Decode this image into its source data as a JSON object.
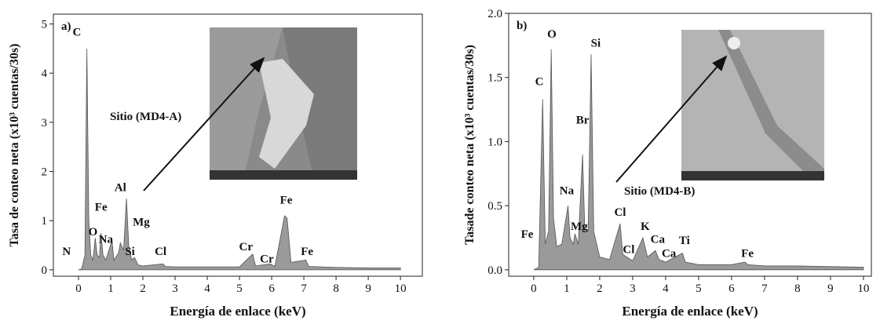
{
  "chart_data": [
    {
      "type": "area",
      "panel_label": "a)",
      "color": "#9a9a9a",
      "x_label": "Energía de enlace (keV)",
      "y_label": "Tasa de conteo neta (x10³ cuentas/30s)",
      "annotation": "Sitio (MD4-A)",
      "xlim": [
        -0.78,
        10.68
      ],
      "ylim": [
        -0.13,
        5.2
      ],
      "xticks": [
        0,
        1,
        2,
        3,
        4,
        5,
        6,
        7,
        8,
        9,
        10
      ],
      "yticks": [
        0,
        1,
        2,
        3,
        4,
        5
      ],
      "x": [
        0,
        0.1,
        0.2,
        0.26,
        0.32,
        0.38,
        0.45,
        0.52,
        0.58,
        0.65,
        0.7,
        0.76,
        0.85,
        1.04,
        1.1,
        1.25,
        1.3,
        1.4,
        1.49,
        1.56,
        1.65,
        1.74,
        1.85,
        2.0,
        2.62,
        2.7,
        3,
        4,
        5,
        5.41,
        5.5,
        5.95,
        6.1,
        6.4,
        6.48,
        6.6,
        7.06,
        7.15,
        8,
        9,
        10
      ],
      "y": [
        0,
        0.02,
        0.3,
        4.5,
        1.0,
        0.3,
        0.2,
        0.65,
        0.3,
        0.25,
        0.75,
        0.3,
        0.2,
        0.6,
        0.2,
        0.35,
        0.55,
        0.4,
        1.45,
        0.5,
        0.2,
        0.25,
        0.1,
        0.08,
        0.12,
        0.07,
        0.06,
        0.06,
        0.06,
        0.32,
        0.08,
        0.12,
        0.07,
        1.1,
        1.05,
        0.15,
        0.2,
        0.07,
        0.05,
        0.04,
        0.04
      ],
      "peak_labels": [
        {
          "label": "N",
          "x": -0.37,
          "y": 0.3
        },
        {
          "label": "C",
          "x": -0.05,
          "y": 4.76
        },
        {
          "label": "O",
          "x": 0.45,
          "y": 0.7
        },
        {
          "label": "Fe",
          "x": 0.7,
          "y": 1.2
        },
        {
          "label": "Na",
          "x": 0.85,
          "y": 0.55
        },
        {
          "label": "Al",
          "x": 1.3,
          "y": 1.6
        },
        {
          "label": "Mg",
          "x": 1.95,
          "y": 0.9
        },
        {
          "label": "Si",
          "x": 1.6,
          "y": 0.3
        },
        {
          "label": "Cl",
          "x": 2.55,
          "y": 0.3
        },
        {
          "label": "Cr",
          "x": 5.2,
          "y": 0.4
        },
        {
          "label": "Cr",
          "x": 5.85,
          "y": 0.15
        },
        {
          "label": "Fe",
          "x": 6.45,
          "y": 1.35
        },
        {
          "label": "Fe",
          "x": 7.1,
          "y": 0.3
        }
      ]
    },
    {
      "type": "area",
      "panel_label": "b)",
      "color": "#9a9a9a",
      "x_label": "Energía de enlace (keV)",
      "y_label": "Tasade conteo neta (x10³ cuentas/30s)",
      "annotation": "Sitio (MD4-B)",
      "xlim": [
        -0.76,
        10.24
      ],
      "ylim": [
        -0.05,
        2.0
      ],
      "xticks": [
        0,
        1,
        2,
        3,
        4,
        5,
        6,
        7,
        8,
        9,
        10
      ],
      "yticks": [
        {
          "value": 0,
          "label": "0.0"
        },
        0.5,
        {
          "value": 1,
          "label": "1.0"
        },
        1.5,
        {
          "value": 2,
          "label": "2.0"
        }
      ],
      "x": [
        0,
        0.15,
        0.27,
        0.35,
        0.45,
        0.53,
        0.6,
        0.7,
        0.85,
        1.04,
        1.1,
        1.2,
        1.25,
        1.35,
        1.48,
        1.55,
        1.65,
        1.74,
        1.82,
        2.0,
        2.3,
        2.62,
        2.7,
        2.82,
        3.0,
        3.31,
        3.45,
        3.69,
        3.8,
        4.0,
        4.51,
        4.6,
        5,
        6,
        6.4,
        6.5,
        7,
        8,
        10
      ],
      "y": [
        0,
        0.02,
        1.33,
        0.2,
        0.3,
        1.72,
        0.4,
        0.18,
        0.2,
        0.5,
        0.25,
        0.2,
        0.28,
        0.2,
        0.9,
        0.3,
        0.3,
        1.68,
        0.3,
        0.1,
        0.08,
        0.36,
        0.12,
        0.1,
        0.07,
        0.25,
        0.1,
        0.15,
        0.08,
        0.06,
        0.13,
        0.06,
        0.04,
        0.04,
        0.06,
        0.04,
        0.03,
        0.03,
        0.02
      ],
      "peak_labels": [
        {
          "label": "Fe",
          "x": -0.2,
          "y": 0.25
        },
        {
          "label": "C",
          "x": 0.17,
          "y": 1.44
        },
        {
          "label": "O",
          "x": 0.55,
          "y": 1.81
        },
        {
          "label": "Si",
          "x": 1.88,
          "y": 1.74
        },
        {
          "label": "Br",
          "x": 1.48,
          "y": 1.14
        },
        {
          "label": "Na",
          "x": 1.0,
          "y": 0.59
        },
        {
          "label": "Mg",
          "x": 1.38,
          "y": 0.31
        },
        {
          "label": "Cl",
          "x": 2.62,
          "y": 0.42
        },
        {
          "label": "Cl",
          "x": 2.88,
          "y": 0.13
        },
        {
          "label": "K",
          "x": 3.38,
          "y": 0.31
        },
        {
          "label": "Ca",
          "x": 3.76,
          "y": 0.21
        },
        {
          "label": "Ca",
          "x": 4.1,
          "y": 0.1
        },
        {
          "label": "Ti",
          "x": 4.57,
          "y": 0.2
        },
        {
          "label": "Fe",
          "x": 6.48,
          "y": 0.1
        }
      ]
    }
  ]
}
